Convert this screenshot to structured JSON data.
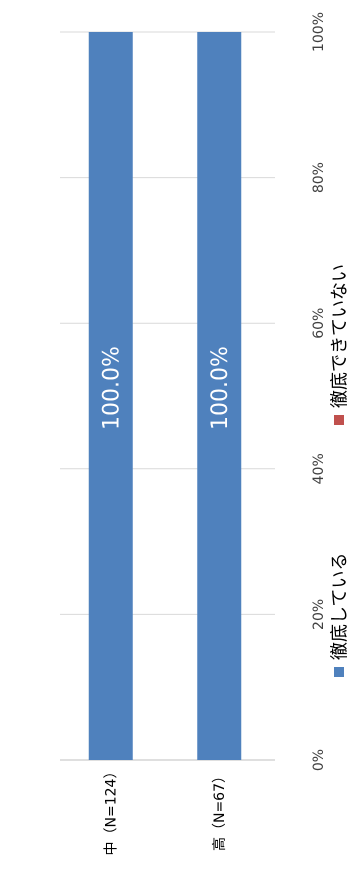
{
  "chart_data": {
    "type": "bar",
    "orientation": "horizontal-stacked-100",
    "categories": [
      "中（N=124）",
      "高（N=67）"
    ],
    "series": [
      {
        "name": "徹底している",
        "color": "#4F81BD",
        "values": [
          100.0,
          100.0
        ]
      },
      {
        "name": "徹底できていない",
        "color": "#C0504D",
        "values": [
          0.0,
          0.0
        ]
      }
    ],
    "data_labels": [
      "100.0%",
      "100.0%"
    ],
    "axis": {
      "ticks": [
        "0%",
        "20%",
        "40%",
        "60%",
        "80%",
        "100%"
      ],
      "range": [
        0,
        100
      ]
    },
    "grid": true,
    "legend_position": "bottom"
  }
}
